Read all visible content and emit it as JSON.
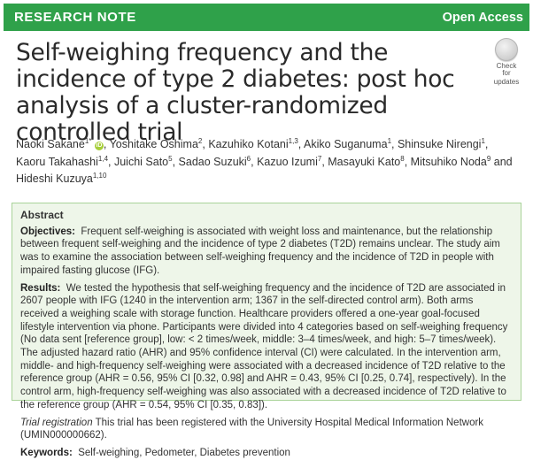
{
  "banner": {
    "label": "RESEARCH NOTE",
    "access": "Open Access"
  },
  "title": "Self-weighing frequency and the incidence of type 2 diabetes: post hoc analysis of a cluster-randomized controlled trial",
  "badge": {
    "line1": "Check for",
    "line2": "updates"
  },
  "authors": [
    {
      "name": "Naoki Sakane",
      "sup": "1*",
      "orcid": true
    },
    {
      "name": "Yoshitake Oshima",
      "sup": "2"
    },
    {
      "name": "Kazuhiko Kotani",
      "sup": "1,3"
    },
    {
      "name": "Akiko Suganuma",
      "sup": "1"
    },
    {
      "name": "Shinsuke Nirengi",
      "sup": "1"
    },
    {
      "name": "Kaoru Takahashi",
      "sup": "1,4"
    },
    {
      "name": "Juichi Sato",
      "sup": "5"
    },
    {
      "name": "Sadao Suzuki",
      "sup": "6"
    },
    {
      "name": "Kazuo Izumi",
      "sup": "7"
    },
    {
      "name": "Masayuki Kato",
      "sup": "8"
    },
    {
      "name": "Mitsuhiko Noda",
      "sup": "9"
    },
    {
      "name": "Hideshi Kuzuya",
      "sup": "1,10"
    }
  ],
  "authors_conjunction": "and",
  "abstract": {
    "heading": "Abstract",
    "objectives_label": "Objectives:",
    "objectives": "Frequent self-weighing is associated with weight loss and maintenance, but the relationship between frequent self-weighing and the incidence of type 2 diabetes (T2D) remains unclear. The study aim was to examine the association between self-weighing frequency and the incidence of T2D in people with impaired fasting glucose (IFG).",
    "results_label": "Results:",
    "results": "We tested the hypothesis that self-weighing frequency and the incidence of T2D are associated in 2607 people with IFG (1240 in the intervention arm; 1367 in the self-directed control arm). Both arms received a weighing scale with storage function. Healthcare providers offered a one-year goal-focused lifestyle intervention via phone. Participants were divided into 4 categories based on self-weighing frequency (No data sent [reference group], low: < 2 times/week, middle: 3–4 times/week, and high: 5–7 times/week). The adjusted hazard ratio (AHR) and 95% confidence interval (CI) were calculated. In the intervention arm, middle- and high-frequency self-weighing were associated with a decreased incidence of T2D relative to the reference group (AHR = 0.56, 95% CI [0.32, 0.98] and AHR = 0.43, 95% CI [0.25, 0.74], respectively). In the control arm, high-frequency self-weighing was also associated with a decreased incidence of T2D relative to the reference group (AHR = 0.54, 95% CI [0.35, 0.83]).",
    "trial_label": "Trial registration",
    "trial": "This trial has been registered with the University Hospital Medical Information Network (UMIN000000662).",
    "keywords_label": "Keywords:",
    "keywords": "Self-weighing, Pedometer, Diabetes prevention"
  }
}
